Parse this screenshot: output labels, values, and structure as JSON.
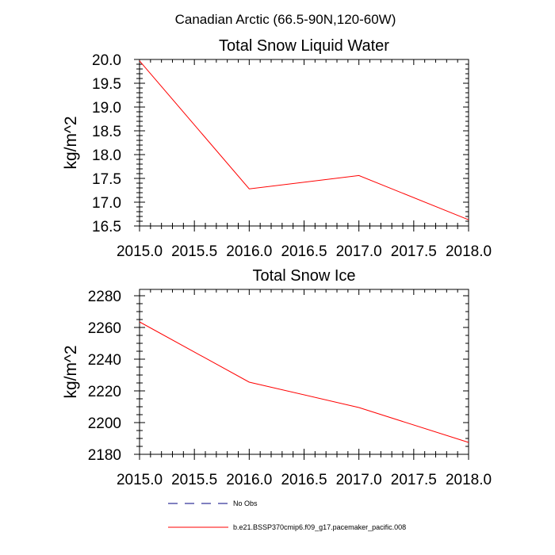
{
  "figure_title": "Canadian Arctic (66.5-90N,120-60W)",
  "legend": [
    {
      "label": "No Obs",
      "color": "#000080",
      "dash": true
    },
    {
      "label": "b.e21.BSSP370cmip6.f09_g17.pacemaker_pacific.008",
      "color": "#ff0000",
      "dash": false
    }
  ],
  "chart_data": [
    {
      "type": "line",
      "title": "Total Snow Liquid Water",
      "ylabel": "kg/m^2",
      "xlabel": "",
      "xlim": [
        2015.0,
        2018.0
      ],
      "ylim": [
        16.5,
        20.0
      ],
      "xticks": [
        2015.0,
        2015.5,
        2016.0,
        2016.5,
        2017.0,
        2017.5,
        2018.0
      ],
      "xtick_labels": [
        "2015.0",
        "2015.5",
        "2016.0",
        "2016.5",
        "2017.0",
        "2017.5",
        "2018.0"
      ],
      "yticks": [
        16.5,
        17.0,
        17.5,
        18.0,
        18.5,
        19.0,
        19.5,
        20.0
      ],
      "ytick_labels": [
        "16.5",
        "17.0",
        "17.5",
        "18.0",
        "18.5",
        "19.0",
        "19.5",
        "20.0"
      ],
      "grid": false,
      "series": [
        {
          "color": "#ff0000",
          "x": [
            2015.0,
            2016.0,
            2017.0,
            2018.0
          ],
          "y": [
            19.97,
            17.28,
            17.56,
            16.63
          ]
        }
      ]
    },
    {
      "type": "line",
      "title": "Total Snow Ice",
      "ylabel": "kg/m^2",
      "xlabel": "",
      "xlim": [
        2015.0,
        2018.0
      ],
      "ylim": [
        2180,
        2284
      ],
      "xticks": [
        2015.0,
        2015.5,
        2016.0,
        2016.5,
        2017.0,
        2017.5,
        2018.0
      ],
      "xtick_labels": [
        "2015.0",
        "2015.5",
        "2016.0",
        "2016.5",
        "2017.0",
        "2017.5",
        "2018.0"
      ],
      "yticks": [
        2180,
        2200,
        2220,
        2240,
        2260,
        2280
      ],
      "ytick_labels": [
        "2180",
        "2200",
        "2220",
        "2240",
        "2260",
        "2280"
      ],
      "grid": false,
      "series": [
        {
          "color": "#ff0000",
          "x": [
            2015.0,
            2016.0,
            2017.0,
            2018.0
          ],
          "y": [
            2263.5,
            2225.5,
            2209.5,
            2187.5
          ]
        }
      ]
    }
  ]
}
